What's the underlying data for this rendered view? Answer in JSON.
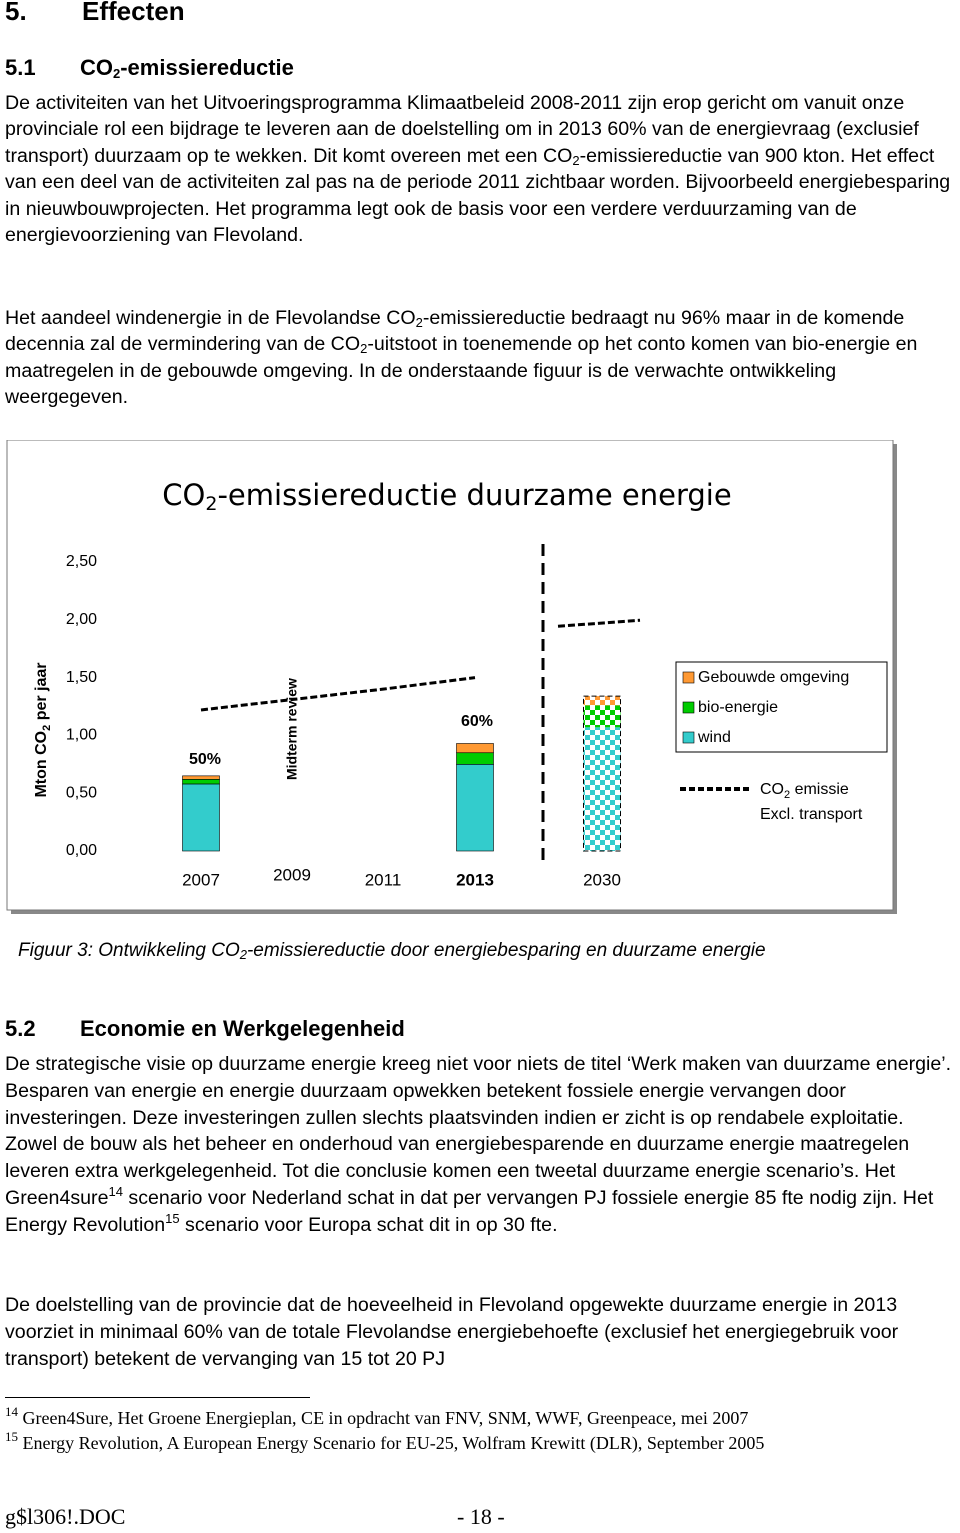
{
  "heading": {
    "number": "5.",
    "title": "Effecten"
  },
  "section1": {
    "number": "5.1",
    "title": [
      "CO",
      "2",
      "-emissiereductie"
    ]
  },
  "paragraphs1": [
    [
      "De activiteiten van het Uitvoeringsprogramma Klimaatbeleid 2008-2011 zijn erop gericht om vanuit onze provinciale rol een bijdrage te leveren aan de doelstelling om in 2013 60% van de energievraag (exclusief transport) duurzaam op te wekken. Dit komt overeen met een CO",
      "2",
      "-emissiereductie van 900 kton. Het effect van een deel van de activiteiten zal pas na de periode 2011 zichtbaar worden. Bijvoorbeeld energiebesparing in nieuwbouwprojecten. Het programma legt ook de basis voor een verdere verduurzaming van de energievoorziening van Flevoland."
    ],
    [
      "Het aandeel windenergie in de Flevolandse CO",
      "2",
      "-emissiereductie bedraagt nu 96% maar in de komende decennia zal de vermindering van de CO",
      "2",
      "-uitstoot in toenemende op het conto komen van bio-energie en maatregelen in de gebouwde omgeving. In de onderstaande figuur is de verwachte ontwikkeling weergegeven."
    ]
  ],
  "chart_data": {
    "type": "bar",
    "stacked": true,
    "title": [
      "CO",
      "2",
      "-emissiereductie duurzame energie"
    ],
    "y_label": [
      "Mton CO",
      "2",
      " per jaar"
    ],
    "categories": [
      "2007",
      "2009",
      "2011",
      "2013",
      null,
      "2030"
    ],
    "series": [
      {
        "name": "wind",
        "color": "#33cccc",
        "values": [
          0.58,
          null,
          null,
          0.75,
          null,
          1.07
        ]
      },
      {
        "name": "bio-energie",
        "color": "#00cc00",
        "values": [
          0.04,
          null,
          null,
          0.1,
          null,
          0.19
        ]
      },
      {
        "name": "Gebouwde omgeving",
        "color": "#ff9933",
        "values": [
          0.03,
          null,
          null,
          0.08,
          null,
          0.08
        ]
      },
      {
        "name": [
          "CO",
          "2",
          " emissie",
          "Excl. transport"
        ],
        "type": "line",
        "color": "#000000",
        "values": [
          1.22,
          1.31,
          1.4,
          1.5,
          null,
          1.97
        ]
      }
    ],
    "ylim": [
      0,
      2.5
    ],
    "yticks": [
      {
        "value": 0,
        "label": "0,00"
      },
      {
        "value": 0.5,
        "label": "0,50"
      },
      {
        "value": 1,
        "label": "1,00"
      },
      {
        "value": 1.5,
        "label": "1,50"
      },
      {
        "value": 2,
        "label": "2,00"
      },
      {
        "value": 2.5,
        "label": "2,50"
      }
    ],
    "annotations": [
      "50%",
      "60%",
      "Midterm review"
    ],
    "grid": false
  },
  "caption": [
    "Figuur 3: Ontwikkeling CO",
    "2",
    "-emissiereductie door energiebesparing en duurzame energie"
  ],
  "section2": {
    "number": "5.2",
    "title": "Economie en Werkgelegenheid"
  },
  "paragraphs2": [
    [
      "De strategische visie op duurzame energie kreeg niet voor niets de titel ‘Werk maken van duurzame energie’. Besparen van energie en energie duurzaam opwekken betekent fossiele energie vervangen door investeringen. Deze investeringen zullen slechts plaatsvinden indien er zicht is op rendabele exploitatie. Zowel de bouw als het beheer en onderhoud van energiebesparende en duurzame energie maatregelen leveren extra werkgelegenheid. Tot die conclusie komen een tweetal duurzame energie scenario’s. Het Green4sure",
      "14",
      " scenario voor Nederland schat in dat per vervangen PJ fossiele energie 85 fte nodig zijn. Het Energy Revolution",
      "15",
      " scenario voor Europa schat dit in op 30 fte."
    ],
    [
      "De doelstelling van de provincie dat de hoeveelheid in Flevoland opgewekte duurzame energie in 2013 voorziet in minimaal 60% van de totale Flevolandse energiebehoefte (exclusief het energiegebruik voor transport) betekent de vervanging van 15 tot 20 PJ"
    ]
  ],
  "footnotes": [
    {
      "number": "14",
      "text": "Green4Sure, Het Groene Energieplan, CE in opdracht van FNV, SNM, WWF, Greenpeace, mei 2007"
    },
    {
      "number": "15",
      "text": "Energy Revolution, A European Energy Scenario for EU-25, Wolfram Krewitt (DLR), September 2005"
    }
  ],
  "footer": {
    "file": "g$l306!.DOC",
    "page": "- 18 -"
  }
}
